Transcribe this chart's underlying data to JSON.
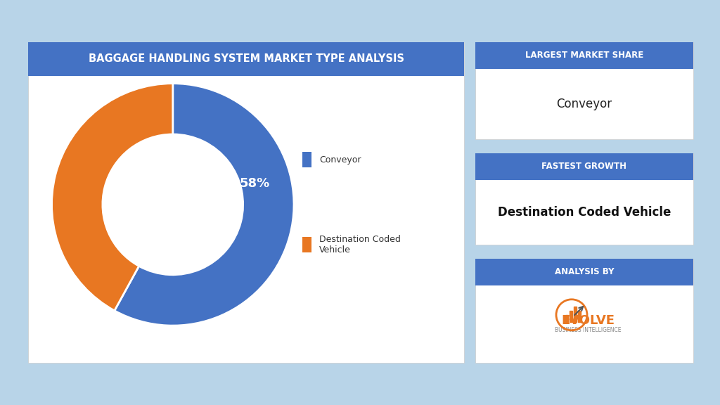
{
  "title": "BAGGAGE HANDLING SYSTEM MARKET TYPE ANALYSIS",
  "pie_values": [
    58,
    42
  ],
  "pie_labels": [
    "Conveyor",
    "Destination Coded\nVehicle"
  ],
  "pie_colors": [
    "#4472C4",
    "#E87722"
  ],
  "pie_pct_label": "58%",
  "pie_pct_label_color": "white",
  "background_outer": "#B8D4E8",
  "background_chart": "#FFFFFF",
  "header_color": "#4472C4",
  "header_text_color": "#FFFFFF",
  "card_bg": "#FFFFFF",
  "right_cards": [
    {
      "header": "LARGEST MARKET SHARE",
      "body": "Conveyor"
    },
    {
      "header": "FASTEST GROWTH",
      "body": "Destination Coded Vehicle"
    },
    {
      "header": "ANALYSIS BY",
      "body": ""
    }
  ],
  "title_fontsize": 10.5,
  "legend_fontsize": 9,
  "card_header_fontsize": 8.5,
  "card_body_fontsize": 12
}
